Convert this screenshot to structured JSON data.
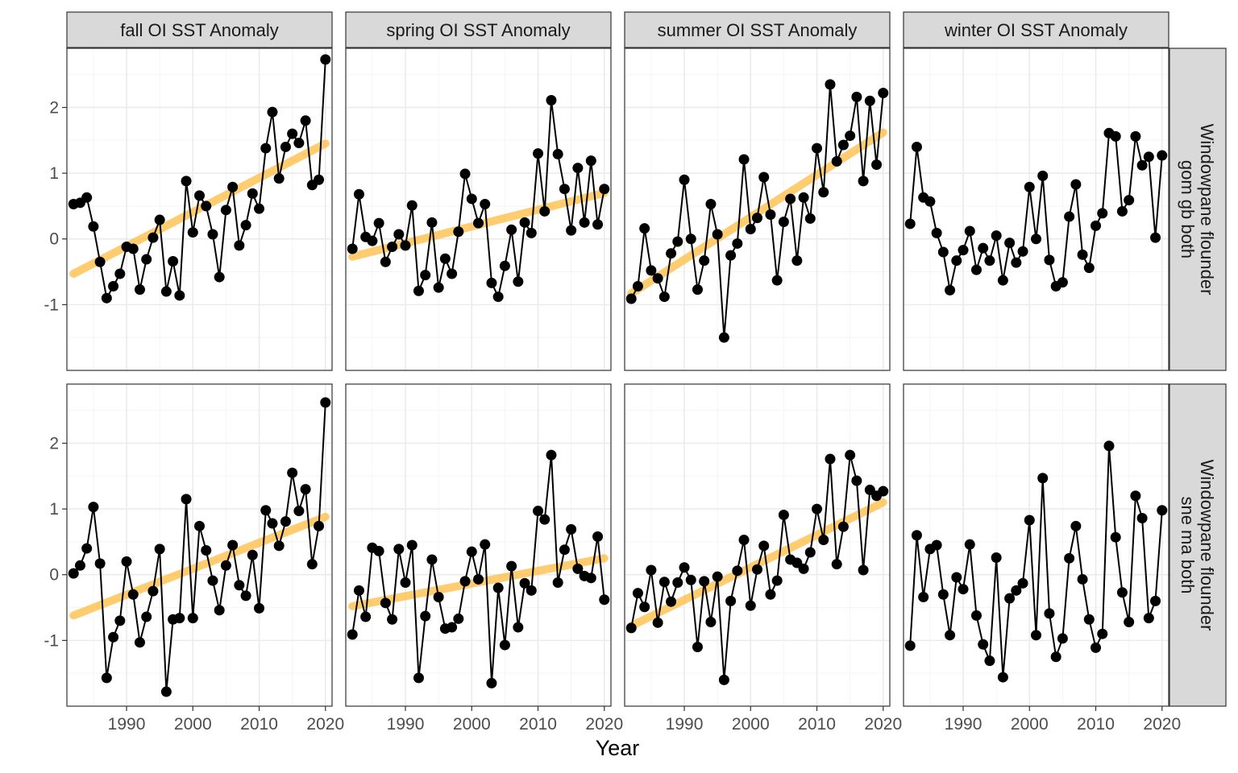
{
  "chart_data": {
    "type": "line",
    "xlabel": "Year",
    "ylabel": "",
    "xlim": [
      1981,
      2021
    ],
    "ylim": [
      -2.0,
      2.9
    ],
    "x_ticks": [
      1990,
      2000,
      2010,
      2020
    ],
    "y_ticks": [
      -1,
      0,
      1,
      2
    ],
    "grid": true,
    "legend": "none",
    "colors": {
      "points": "#000000",
      "line": "#000000",
      "trend": "#ffc04d",
      "strip_bg": "#d9d9d9",
      "grid_major": "#ebebeb",
      "grid_minor": "#f5f5f5",
      "panel_border": "#333333"
    },
    "columns": [
      "fall OI SST Anomaly",
      "spring OI SST Anomaly",
      "summer OI SST Anomaly",
      "winter OI SST Anomaly"
    ],
    "rows": [
      "Windowpane flounder\ngom gb both",
      "Windowpane flounder\nsne ma both"
    ],
    "panels": [
      {
        "row": 0,
        "col": 0,
        "x0": 1982,
        "values": [
          0.53,
          0.55,
          0.63,
          0.19,
          -0.35,
          -0.9,
          -0.72,
          -0.53,
          -0.12,
          -0.15,
          -0.77,
          -0.31,
          0.02,
          0.29,
          -0.8,
          -0.34,
          -0.86,
          0.88,
          0.1,
          0.66,
          0.5,
          0.07,
          -0.58,
          0.44,
          0.79,
          -0.1,
          0.21,
          0.69,
          0.46,
          1.38,
          1.93,
          0.92,
          1.4,
          1.6,
          1.46,
          1.8,
          0.82,
          0.9,
          2.73
        ],
        "trend": [
          -0.53,
          1.45
        ]
      },
      {
        "row": 0,
        "col": 1,
        "x0": 1982,
        "values": [
          -0.15,
          0.68,
          0.03,
          -0.03,
          0.24,
          -0.35,
          -0.12,
          0.07,
          -0.1,
          0.51,
          -0.79,
          -0.55,
          0.25,
          -0.74,
          -0.3,
          -0.53,
          0.11,
          0.99,
          0.61,
          0.24,
          0.53,
          -0.67,
          -0.88,
          -0.41,
          0.14,
          -0.65,
          0.25,
          0.09,
          1.3,
          0.42,
          2.11,
          1.29,
          0.76,
          0.13,
          1.08,
          0.25,
          1.19,
          0.22,
          0.76
        ],
        "trend": [
          -0.27,
          0.7
        ]
      },
      {
        "row": 0,
        "col": 2,
        "x0": 1982,
        "values": [
          -0.91,
          -0.72,
          0.16,
          -0.48,
          -0.6,
          -0.88,
          -0.22,
          -0.04,
          0.9,
          0.0,
          -0.77,
          -0.33,
          0.53,
          0.07,
          -1.5,
          -0.25,
          -0.07,
          1.21,
          0.15,
          0.32,
          0.94,
          0.37,
          -0.63,
          0.26,
          0.61,
          -0.33,
          0.63,
          0.31,
          1.38,
          0.71,
          2.35,
          1.18,
          1.43,
          1.57,
          2.16,
          0.88,
          2.1,
          1.13,
          2.22
        ],
        "trend": [
          -0.83,
          1.62
        ]
      },
      {
        "row": 0,
        "col": 3,
        "x0": 1982,
        "values": [
          0.23,
          1.4,
          0.63,
          0.57,
          0.09,
          -0.2,
          -0.78,
          -0.33,
          -0.17,
          0.12,
          -0.47,
          -0.14,
          -0.33,
          0.05,
          -0.63,
          -0.06,
          -0.36,
          -0.19,
          0.79,
          0.0,
          0.96,
          -0.32,
          -0.72,
          -0.66,
          0.34,
          0.83,
          -0.24,
          -0.44,
          0.2,
          0.39,
          1.61,
          1.56,
          0.42,
          0.59,
          1.56,
          1.12,
          1.25,
          0.02,
          1.27
        ],
        "trend": null
      },
      {
        "row": 1,
        "col": 0,
        "x0": 1982,
        "values": [
          0.02,
          0.14,
          0.4,
          1.03,
          0.17,
          -1.57,
          -0.95,
          -0.7,
          0.2,
          -0.3,
          -1.03,
          -0.64,
          -0.25,
          0.39,
          -1.78,
          -0.68,
          -0.66,
          1.15,
          -0.66,
          0.74,
          0.37,
          -0.09,
          -0.54,
          0.14,
          0.45,
          -0.16,
          -0.32,
          0.3,
          -0.51,
          0.98,
          0.78,
          0.44,
          0.81,
          1.55,
          0.97,
          1.3,
          0.16,
          0.74,
          2.62
        ],
        "trend": [
          -0.62,
          0.88
        ]
      },
      {
        "row": 1,
        "col": 1,
        "x0": 1982,
        "values": [
          -0.91,
          -0.24,
          -0.64,
          0.41,
          0.36,
          -0.43,
          -0.68,
          0.39,
          -0.12,
          0.45,
          -1.57,
          -0.63,
          0.23,
          -0.34,
          -0.82,
          -0.8,
          -0.67,
          -0.1,
          0.35,
          -0.07,
          0.46,
          -1.65,
          -0.2,
          -1.07,
          0.13,
          -0.8,
          -0.13,
          -0.24,
          0.97,
          0.84,
          1.82,
          -0.12,
          0.38,
          0.69,
          0.09,
          -0.02,
          -0.05,
          0.58,
          -0.38
        ],
        "trend": [
          -0.48,
          0.25
        ]
      },
      {
        "row": 1,
        "col": 2,
        "x0": 1982,
        "values": [
          -0.81,
          -0.28,
          -0.49,
          0.07,
          -0.73,
          -0.11,
          -0.41,
          -0.12,
          0.11,
          -0.08,
          -1.1,
          -0.1,
          -0.72,
          -0.03,
          -1.6,
          -0.4,
          0.06,
          0.53,
          -0.47,
          0.08,
          0.44,
          -0.3,
          -0.09,
          0.91,
          0.23,
          0.18,
          0.09,
          0.34,
          1.0,
          0.53,
          1.76,
          0.16,
          0.73,
          1.82,
          1.43,
          0.07,
          1.29,
          1.2,
          1.27
        ],
        "trend": [
          -0.78,
          1.1
        ]
      },
      {
        "row": 1,
        "col": 3,
        "x0": 1982,
        "values": [
          -1.08,
          0.6,
          -0.34,
          0.39,
          0.45,
          -0.3,
          -0.92,
          -0.04,
          -0.22,
          0.46,
          -0.62,
          -1.06,
          -1.31,
          0.26,
          -1.56,
          -0.36,
          -0.24,
          -0.13,
          0.83,
          -0.92,
          1.47,
          -0.59,
          -1.25,
          -0.97,
          0.25,
          0.74,
          -0.07,
          -0.68,
          -1.11,
          -0.9,
          1.96,
          0.57,
          -0.27,
          -0.72,
          1.2,
          0.86,
          -0.66,
          -0.4,
          0.98
        ],
        "trend": null
      }
    ]
  }
}
